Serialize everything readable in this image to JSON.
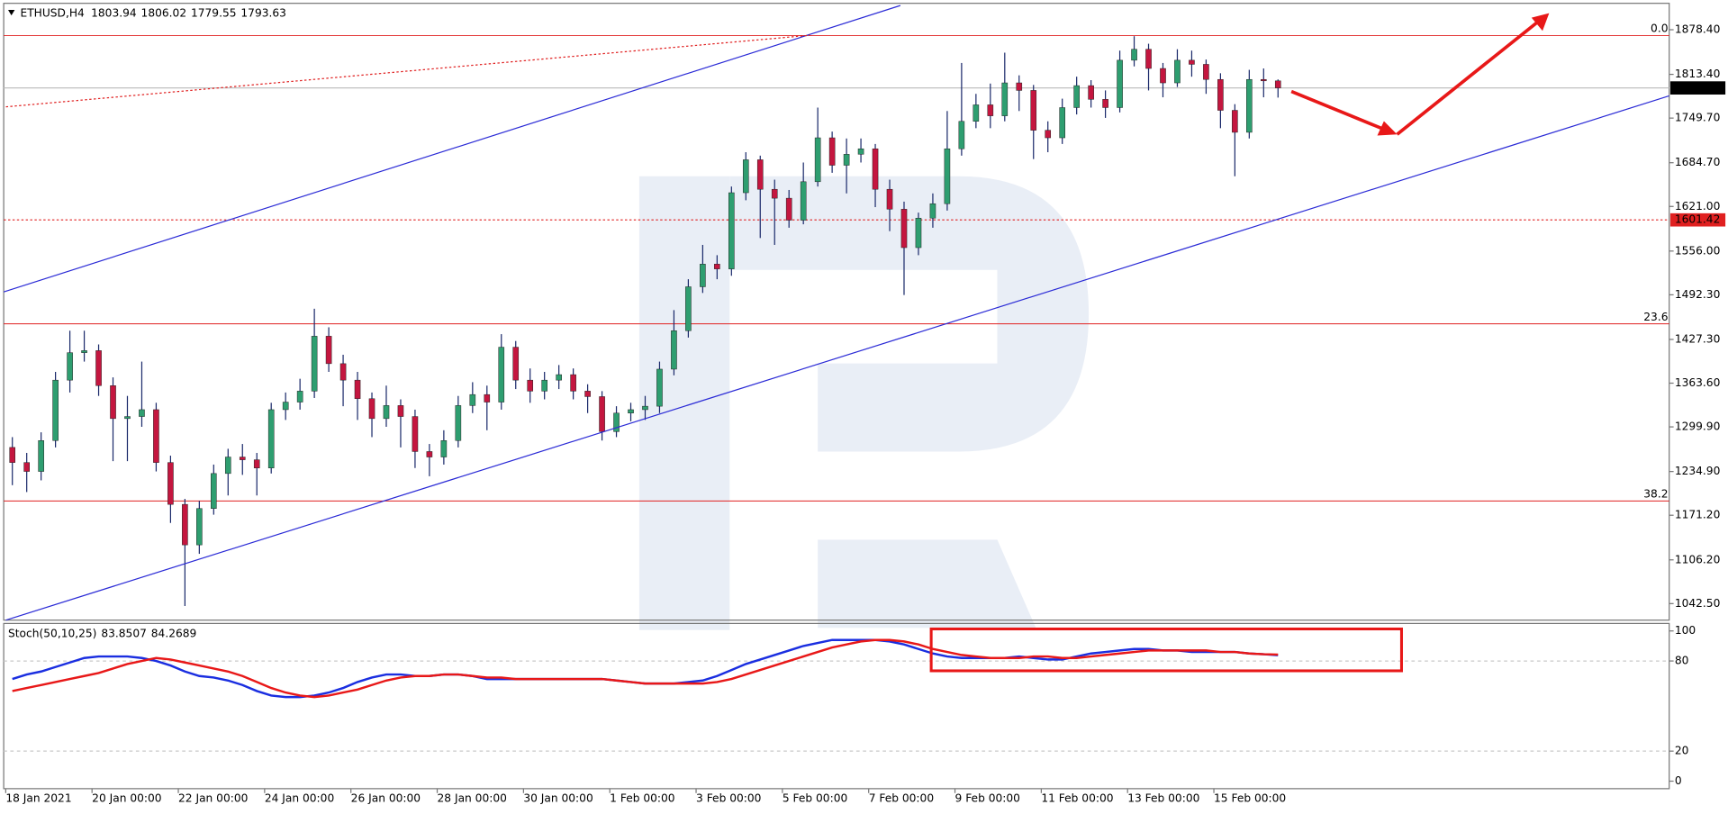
{
  "chart_data": [
    {
      "type": "candlestick",
      "symbol": "ETHUSD,H4",
      "open": [
        1270,
        1248,
        1235,
        1280,
        1368,
        1408,
        1411,
        1360,
        1312,
        1315,
        1325,
        1248,
        1187,
        1128,
        1181,
        1232,
        1256,
        1252,
        1240,
        1325,
        1336,
        1352,
        1432,
        1392,
        1368,
        1341,
        1312,
        1331,
        1315,
        1264,
        1256,
        1280,
        1331,
        1347,
        1336,
        1416,
        1368,
        1352,
        1368,
        1376,
        1352,
        1344,
        1293,
        1320,
        1325,
        1330,
        1384,
        1440,
        1504,
        1537,
        1530,
        1641,
        1689,
        1646,
        1633,
        1601,
        1657,
        1721,
        1681,
        1697,
        1705,
        1646,
        1617,
        1561,
        1604,
        1625,
        1705,
        1745,
        1769,
        1753,
        1801,
        1790,
        1732,
        1721,
        1765,
        1797,
        1777,
        1765,
        1834,
        1850,
        1822,
        1801,
        1834,
        1828,
        1806,
        1761,
        1729,
        1806,
        1803.94
      ],
      "high": [
        1285,
        1262,
        1292,
        1380,
        1440,
        1440,
        1420,
        1372,
        1345,
        1395,
        1335,
        1258,
        1195,
        1192,
        1245,
        1268,
        1275,
        1262,
        1335,
        1350,
        1370,
        1472,
        1445,
        1405,
        1380,
        1350,
        1360,
        1340,
        1325,
        1275,
        1295,
        1345,
        1365,
        1360,
        1435,
        1425,
        1385,
        1380,
        1390,
        1385,
        1362,
        1352,
        1330,
        1335,
        1345,
        1395,
        1470,
        1515,
        1565,
        1550,
        1650,
        1700,
        1695,
        1660,
        1645,
        1685,
        1765,
        1730,
        1720,
        1720,
        1712,
        1660,
        1628,
        1612,
        1640,
        1760,
        1830,
        1785,
        1800,
        1845,
        1812,
        1798,
        1745,
        1778,
        1810,
        1805,
        1790,
        1848,
        1869,
        1858,
        1830,
        1850,
        1848,
        1835,
        1815,
        1770,
        1820,
        1822,
        1806.02
      ],
      "low": [
        1215,
        1205,
        1222,
        1270,
        1350,
        1395,
        1345,
        1250,
        1250,
        1300,
        1235,
        1160,
        1039,
        1115,
        1172,
        1200,
        1230,
        1200,
        1232,
        1310,
        1325,
        1342,
        1380,
        1330,
        1310,
        1285,
        1300,
        1270,
        1240,
        1228,
        1245,
        1270,
        1320,
        1295,
        1325,
        1355,
        1335,
        1340,
        1355,
        1340,
        1320,
        1280,
        1285,
        1308,
        1310,
        1320,
        1375,
        1430,
        1495,
        1515,
        1520,
        1630,
        1575,
        1565,
        1590,
        1595,
        1650,
        1670,
        1640,
        1685,
        1620,
        1585,
        1492,
        1550,
        1590,
        1615,
        1695,
        1735,
        1735,
        1745,
        1760,
        1690,
        1700,
        1712,
        1755,
        1765,
        1750,
        1758,
        1825,
        1790,
        1780,
        1795,
        1810,
        1785,
        1735,
        1665,
        1720,
        1780,
        1779.55
      ],
      "close": [
        1248,
        1235,
        1280,
        1368,
        1408,
        1411,
        1360,
        1312,
        1315,
        1325,
        1248,
        1187,
        1128,
        1181,
        1232,
        1256,
        1252,
        1240,
        1325,
        1336,
        1352,
        1432,
        1392,
        1368,
        1341,
        1312,
        1331,
        1315,
        1264,
        1256,
        1280,
        1331,
        1347,
        1336,
        1416,
        1368,
        1352,
        1368,
        1376,
        1352,
        1344,
        1293,
        1320,
        1325,
        1330,
        1384,
        1440,
        1504,
        1537,
        1530,
        1641,
        1689,
        1646,
        1633,
        1601,
        1657,
        1721,
        1681,
        1697,
        1705,
        1646,
        1617,
        1561,
        1604,
        1625,
        1705,
        1745,
        1769,
        1753,
        1801,
        1790,
        1732,
        1721,
        1765,
        1797,
        1777,
        1765,
        1834,
        1850,
        1822,
        1801,
        1834,
        1828,
        1806,
        1761,
        1729,
        1806,
        1803.94,
        1793.63
      ],
      "up_color": "#2e9e70",
      "down_color": "#c4163f",
      "wick_color": "#1b2a6b",
      "xlim": [
        -0.6,
        115.2
      ],
      "ylim": [
        1018.4,
        1916.9
      ],
      "yticks": [
        {
          "value": 1878.4,
          "label": "1878.40"
        },
        {
          "value": 1813.4,
          "label": "1813.40"
        },
        {
          "value": 1749.7,
          "label": "1749.70"
        },
        {
          "value": 1684.7,
          "label": "1684.70"
        },
        {
          "value": 1621,
          "label": "1621.00"
        },
        {
          "value": 1556,
          "label": "1556.00"
        },
        {
          "value": 1492.3,
          "label": "1492.30"
        },
        {
          "value": 1427.3,
          "label": "1427.30"
        },
        {
          "value": 1363.6,
          "label": "1363.60"
        },
        {
          "value": 1299.9,
          "label": "1299.90"
        },
        {
          "value": 1234.9,
          "label": "1234.90"
        },
        {
          "value": 1171.2,
          "label": "1171.20"
        },
        {
          "value": 1106.2,
          "label": "1106.20"
        },
        {
          "value": 1042.5,
          "label": "1042.50"
        }
      ],
      "xticks": [
        {
          "value": 0,
          "label": "18 Jan 2021"
        },
        {
          "value": 6,
          "label": "20 Jan 00:00"
        },
        {
          "value": 12,
          "label": "22 Jan 00:00"
        },
        {
          "value": 18,
          "label": "24 Jan 00:00"
        },
        {
          "value": 24,
          "label": "26 Jan 00:00"
        },
        {
          "value": 30,
          "label": "28 Jan 00:00"
        },
        {
          "value": 36,
          "label": "30 Jan 00:00"
        },
        {
          "value": 42,
          "label": "1 Feb 00:00"
        },
        {
          "value": 48,
          "label": "3 Feb 00:00"
        },
        {
          "value": 54,
          "label": "5 Feb 00:00"
        },
        {
          "value": 60,
          "label": "7 Feb 00:00"
        },
        {
          "value": 66,
          "label": "9 Feb 00:00"
        },
        {
          "value": 72,
          "label": "11 Feb 00:00"
        },
        {
          "value": 78,
          "label": "13 Feb 00:00"
        },
        {
          "value": 84,
          "label": "15 Feb 00:00"
        }
      ],
      "hlines": [
        1601.42
      ],
      "hline_color": "#e02020",
      "fib_levels": [
        {
          "label": "0.0",
          "price": 1870
        },
        {
          "label": "23.6",
          "price": 1450
        },
        {
          "label": "38.2",
          "price": 1192
        }
      ],
      "fib_color": "#e02020"
    },
    {
      "type": "line",
      "title": "Stoch(50,10,25)",
      "series": [
        {
          "color": "#1a2ee0",
          "values": [
            68,
            71,
            73,
            76,
            79,
            82,
            83,
            83,
            83,
            82,
            80,
            77,
            73,
            70,
            69,
            67,
            64,
            60,
            57,
            56,
            56,
            57,
            59,
            62,
            66,
            69,
            71,
            71,
            70,
            70,
            71,
            71,
            70,
            68,
            68,
            68,
            68,
            68,
            68,
            68,
            68,
            68,
            67,
            66,
            65,
            65,
            65,
            66,
            67,
            70,
            74,
            78,
            81,
            84,
            87,
            90,
            92,
            94,
            94,
            94,
            94,
            93,
            91,
            88,
            85,
            83,
            82,
            82,
            82,
            82,
            83,
            82,
            81,
            81,
            83,
            85,
            86,
            87,
            88,
            88,
            87,
            87,
            86,
            86,
            86,
            86,
            85,
            84.5,
            83.8507
          ]
        },
        {
          "color": "#e81818",
          "values": [
            60,
            62,
            64,
            66,
            68,
            70,
            72,
            75,
            78,
            80,
            82,
            81,
            79,
            77,
            75,
            73,
            70,
            66,
            62,
            59,
            57,
            56,
            57,
            59,
            61,
            64,
            67,
            69,
            70,
            70,
            71,
            71,
            70,
            69,
            69,
            68,
            68,
            68,
            68,
            68,
            68,
            68,
            67,
            66,
            65,
            65,
            65,
            65,
            65,
            66,
            68,
            71,
            74,
            77,
            80,
            83,
            86,
            89,
            91,
            93,
            94,
            94,
            93,
            91,
            88,
            86,
            84,
            83,
            82,
            82,
            82,
            83,
            83,
            82,
            82,
            83,
            84,
            85,
            86,
            87,
            87,
            87,
            87,
            87,
            86,
            86,
            85,
            84.5,
            84.2689
          ]
        }
      ],
      "ylim": [
        -5,
        105
      ],
      "yticks": [
        100,
        80,
        20,
        0
      ],
      "levels": [
        80,
        20
      ]
    }
  ]
}
